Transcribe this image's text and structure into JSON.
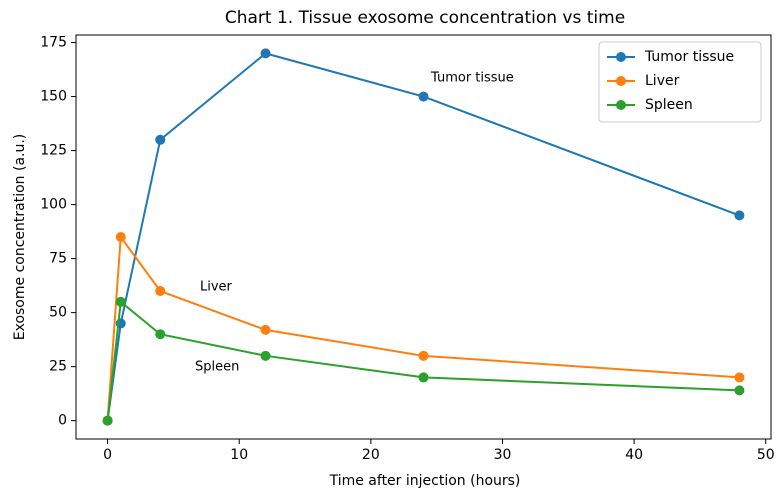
{
  "chart_data": {
    "type": "line",
    "title": "Chart 1. Tissue exosome concentration vs time",
    "xlabel": "Time after injection (hours)",
    "ylabel": "Exosome concentration (a.u.)",
    "x": [
      0,
      1,
      4,
      12,
      24,
      48
    ],
    "series": [
      {
        "name": "Tumor tissue",
        "color": "#1f77b4",
        "values": [
          0,
          45,
          130,
          170,
          150,
          95
        ]
      },
      {
        "name": "Liver",
        "color": "#ff7f0e",
        "values": [
          0,
          85,
          60,
          42,
          30,
          20
        ]
      },
      {
        "name": "Spleen",
        "color": "#2ca02c",
        "values": [
          0,
          55,
          40,
          30,
          20,
          14
        ]
      }
    ],
    "annotations": [
      "Tumor tissue",
      "Liver",
      "Spleen"
    ],
    "xlim": [
      -2.4,
      50.4
    ],
    "xticks": [
      0,
      10,
      20,
      30,
      40,
      50
    ],
    "ylim": [
      -8.5,
      178.5
    ],
    "yticks": [
      0,
      25,
      50,
      75,
      100,
      125,
      150,
      175
    ],
    "legend": "upper right"
  }
}
